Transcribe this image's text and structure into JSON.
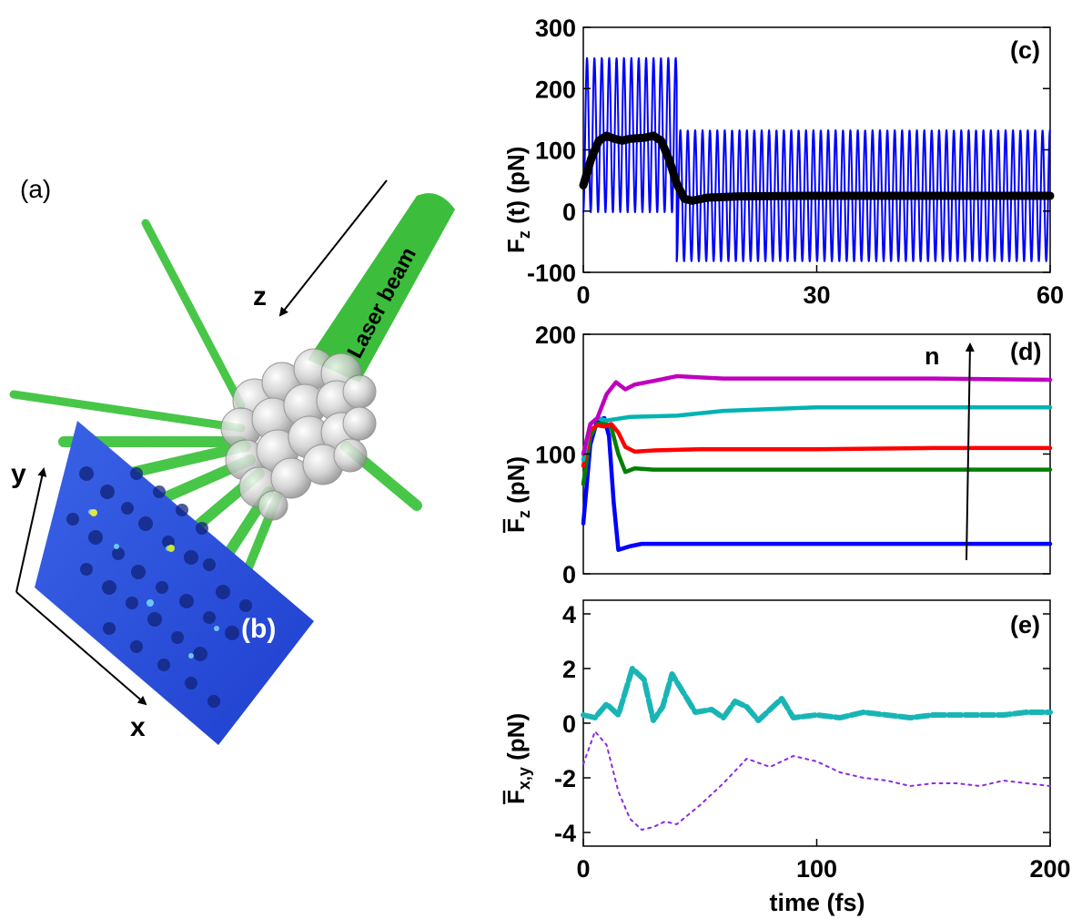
{
  "illustration": {
    "label_a": "(a)",
    "label_b": "(b)",
    "laser_label": "Laser beam",
    "axis_z": "z",
    "axis_y": "y",
    "axis_x": "x",
    "colors": {
      "beam": "#3fc33f",
      "plate": "#2f4fd8",
      "sphere": "#c8c8c8"
    }
  },
  "chart_data": [
    {
      "id": "c",
      "type": "line",
      "panel_label": "(c)",
      "ylabel": "F_z (t) (pN)",
      "xlim": [
        0,
        60
      ],
      "ylim": [
        -100,
        300
      ],
      "xticks": [
        0,
        30,
        60
      ],
      "yticks": [
        -100,
        0,
        100,
        200,
        300
      ],
      "grid": false,
      "series": [
        {
          "color": "#0000ff",
          "style": "oscillation",
          "segments": [
            {
              "x_start": 0.0,
              "x_end": 12.0,
              "min": -2,
              "max": 250,
              "period": 0.95
            },
            {
              "x_start": 12.0,
              "x_end": 60.0,
              "min": -82,
              "max": 132,
              "period": 0.95
            }
          ]
        },
        {
          "color": "#000000",
          "style": "thick",
          "x": [
            0,
            1,
            2,
            3,
            4,
            5,
            6,
            7,
            8,
            9,
            10,
            11,
            12,
            13,
            14,
            16,
            20,
            30,
            40,
            50,
            60
          ],
          "y": [
            42,
            85,
            115,
            123,
            118,
            115,
            118,
            119,
            120,
            123,
            115,
            85,
            45,
            20,
            17,
            22,
            24,
            25,
            25,
            25,
            25
          ]
        }
      ]
    },
    {
      "id": "d",
      "type": "line",
      "panel_label": "(d)",
      "ylabel": "F̄_z (pN)",
      "xlim": [
        0,
        200
      ],
      "ylim": [
        0,
        200
      ],
      "yticks": [
        0,
        100,
        200
      ],
      "grid": false,
      "arrow_label": "n",
      "series": [
        {
          "color": "#0000ff",
          "x": [
            0,
            3,
            6,
            9,
            11,
            13,
            15,
            20,
            25,
            50,
            100,
            150,
            200
          ],
          "y": [
            42,
            108,
            128,
            130,
            115,
            60,
            20,
            23,
            25,
            25,
            25,
            25,
            25
          ]
        },
        {
          "color": "#008000",
          "x": [
            0,
            3,
            6,
            9,
            12,
            15,
            18,
            22,
            30,
            50,
            100,
            150,
            200
          ],
          "y": [
            75,
            115,
            125,
            126,
            122,
            100,
            85,
            88,
            87,
            87,
            87,
            87,
            87
          ]
        },
        {
          "color": "#ff0000",
          "x": [
            0,
            3,
            6,
            9,
            12,
            15,
            18,
            22,
            30,
            50,
            100,
            150,
            200
          ],
          "y": [
            90,
            120,
            124,
            123,
            125,
            118,
            106,
            102,
            103,
            104,
            104,
            105,
            105
          ]
        },
        {
          "color": "#00b3b3",
          "x": [
            0,
            3,
            6,
            10,
            20,
            40,
            60,
            100,
            150,
            200
          ],
          "y": [
            95,
            125,
            130,
            128,
            131,
            132,
            136,
            139,
            139,
            139
          ]
        },
        {
          "color": "#bf00bf",
          "x": [
            0,
            3,
            6,
            10,
            14,
            18,
            22,
            30,
            40,
            60,
            100,
            150,
            200
          ],
          "y": [
            100,
            125,
            130,
            150,
            160,
            154,
            158,
            161,
            165,
            163,
            163,
            163,
            162
          ]
        }
      ]
    },
    {
      "id": "e",
      "type": "line",
      "panel_label": "(e)",
      "ylabel": "F̄x,y (pN)",
      "xlabel": "time (fs)",
      "xlim": [
        0,
        200
      ],
      "ylim": [
        -4.5,
        4.5
      ],
      "xticks": [
        0,
        100,
        200
      ],
      "yticks": [
        -4,
        -2,
        0,
        2,
        4
      ],
      "grid": false,
      "series": [
        {
          "color": "#19b5b5",
          "style": "thick-dashed",
          "x": [
            0,
            5,
            10,
            15,
            21,
            26,
            30,
            34,
            38,
            43,
            48,
            55,
            60,
            65,
            70,
            75,
            80,
            85,
            90,
            100,
            110,
            120,
            130,
            140,
            150,
            160,
            170,
            180,
            190,
            200
          ],
          "y": [
            0.3,
            0.2,
            0.7,
            0.3,
            2.0,
            1.6,
            0.1,
            0.6,
            1.8,
            1.1,
            0.4,
            0.5,
            0.2,
            0.8,
            0.6,
            0.1,
            0.5,
            0.9,
            0.2,
            0.3,
            0.2,
            0.4,
            0.3,
            0.2,
            0.3,
            0.3,
            0.3,
            0.3,
            0.4,
            0.4
          ]
        },
        {
          "color": "#8a2be2",
          "style": "dotted",
          "x": [
            0,
            5,
            10,
            15,
            20,
            25,
            30,
            35,
            40,
            50,
            60,
            70,
            80,
            90,
            100,
            110,
            120,
            130,
            140,
            150,
            160,
            170,
            180,
            190,
            200
          ],
          "y": [
            -1.5,
            -0.3,
            -0.8,
            -2.5,
            -3.5,
            -3.9,
            -3.8,
            -3.6,
            -3.7,
            -3.0,
            -2.2,
            -1.3,
            -1.6,
            -1.2,
            -1.4,
            -1.8,
            -2.0,
            -2.1,
            -2.3,
            -2.2,
            -2.2,
            -2.3,
            -2.1,
            -2.2,
            -2.3
          ]
        }
      ]
    }
  ]
}
